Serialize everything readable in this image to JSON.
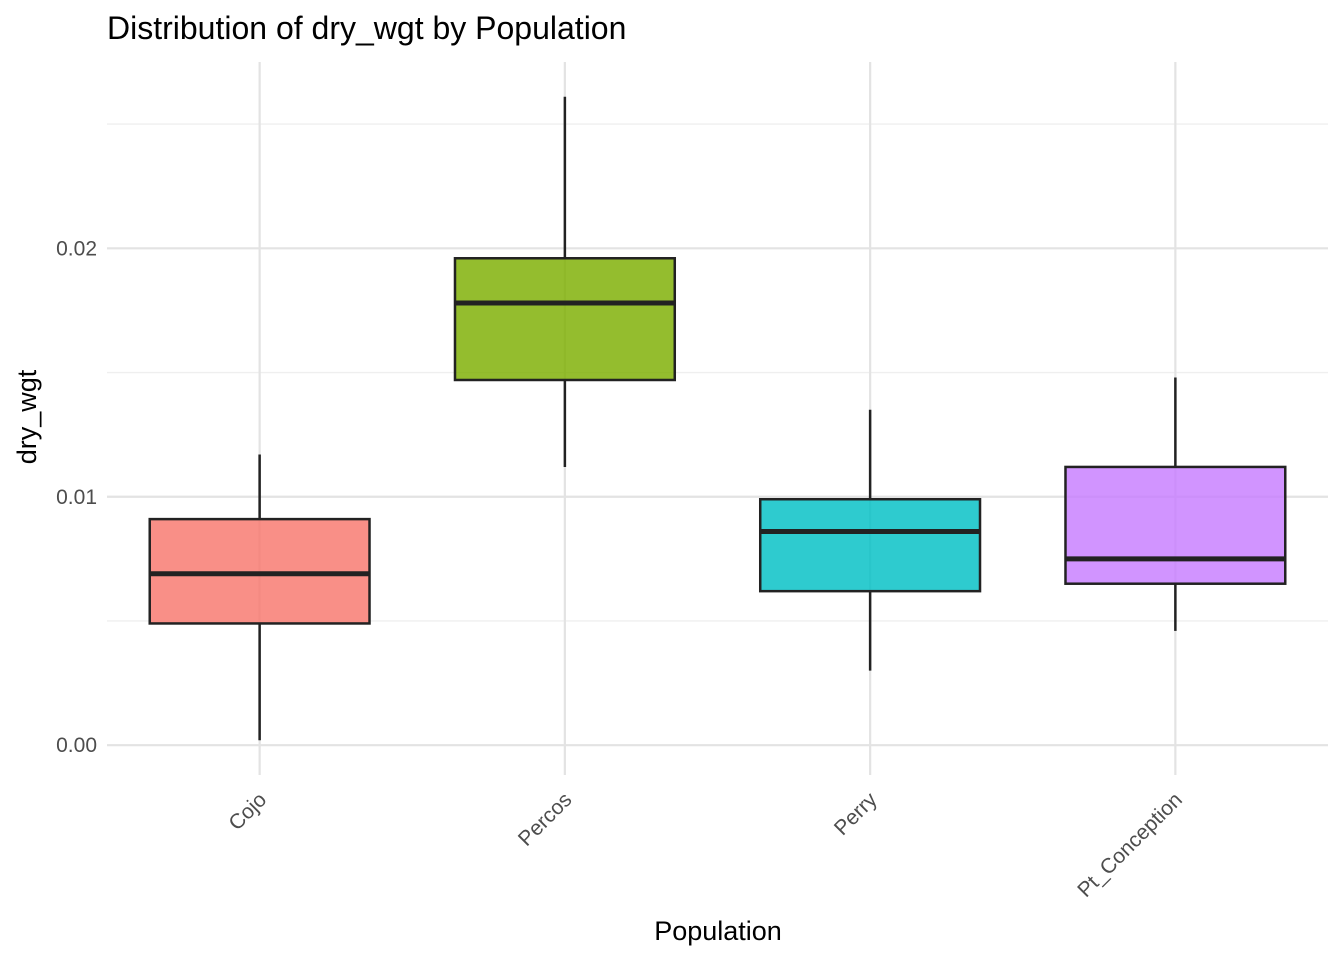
{
  "chart_data": {
    "type": "boxplot",
    "title": "Distribution of dry_wgt by Population",
    "xlabel": "Population",
    "ylabel": "dry_wgt",
    "ylim": [
      -0.0012,
      0.0275
    ],
    "y_ticks": [
      0.0,
      0.01,
      0.02
    ],
    "y_tick_labels": [
      "0.00",
      "0.01",
      "0.02"
    ],
    "grid": true,
    "legend": "none",
    "x_tick_label_rotation": -45,
    "categories": [
      "Cojo",
      "Percos",
      "Perry",
      "Pt_Conception"
    ],
    "series": [
      {
        "category": "Cojo",
        "whisker_low": 0.0002,
        "q1": 0.0049,
        "median": 0.0069,
        "q3": 0.0091,
        "whisker_high": 0.0117,
        "color": "#F8766D"
      },
      {
        "category": "Percos",
        "whisker_low": 0.0112,
        "q1": 0.0147,
        "median": 0.0178,
        "q3": 0.0196,
        "whisker_high": 0.0261,
        "color": "#7CAE00"
      },
      {
        "category": "Perry",
        "whisker_low": 0.003,
        "q1": 0.0062,
        "median": 0.0086,
        "q3": 0.0099,
        "whisker_high": 0.0135,
        "color": "#00BFC4"
      },
      {
        "category": "Pt_Conception",
        "whisker_low": 0.0046,
        "q1": 0.0065,
        "median": 0.0075,
        "q3": 0.0112,
        "whisker_high": 0.0148,
        "color": "#C77CFF"
      }
    ]
  }
}
